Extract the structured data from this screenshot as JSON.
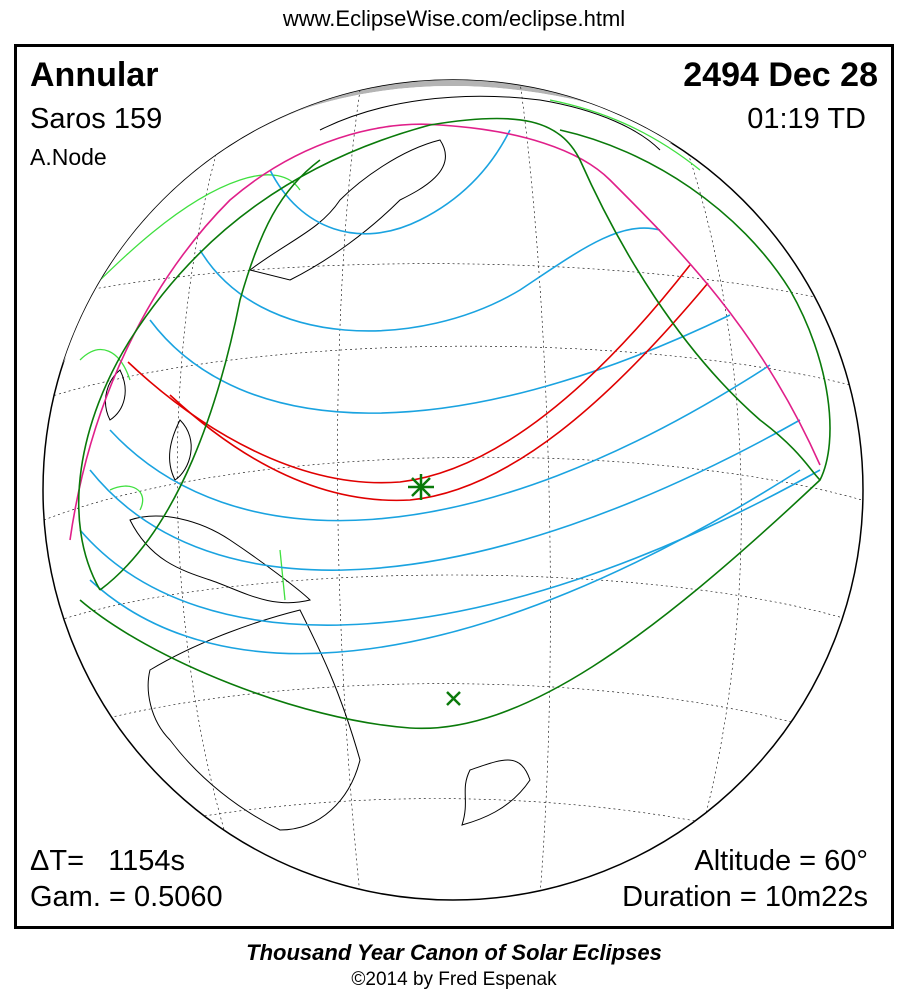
{
  "header": {
    "url": "www.EclipseWise.com/eclipse.html"
  },
  "eclipse": {
    "type": "Annular",
    "date": "2494 Dec 28",
    "saros": "Saros 159",
    "time": "01:19 TD",
    "node": "A.Node",
    "delta_t": "ΔT=   1154s",
    "gamma": "Gam. = 0.5060",
    "altitude": "Altitude = 60°",
    "duration": "Duration = 10m22s"
  },
  "footer": {
    "title": "Thousand Year Canon of Solar Eclipses",
    "copyright": "©2014 by Fred Espenak"
  },
  "colors": {
    "central_path": "#e00000",
    "penumbral_limits": "#0a7a0a",
    "magnitude_lines": "#1aa3e0",
    "rise_set_limits": "#e0208a",
    "night_shading": "#b4b4b4",
    "borders": "#40e040"
  },
  "icons": [
    "greatest-eclipse-star-icon",
    "subsolar-point-x-icon"
  ]
}
